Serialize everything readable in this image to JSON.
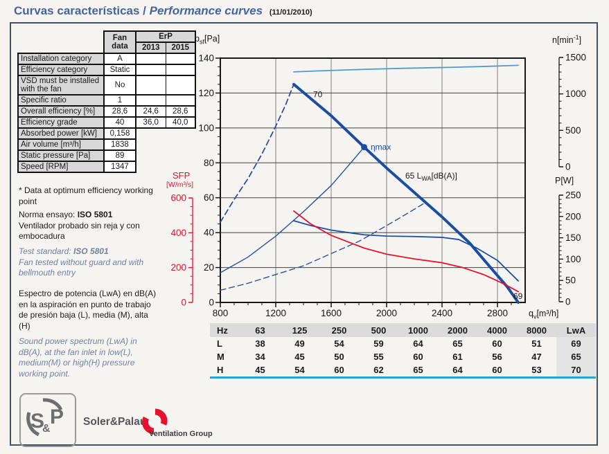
{
  "title": {
    "part1": "Curvas características /",
    "part2": "Performance curves",
    "date": "(11/01/2010)"
  },
  "fan_table": {
    "header": {
      "fan_line1": "Fan",
      "fan_line2": "data",
      "erp": "ErP",
      "y2013": "2013",
      "y2015": "2015"
    },
    "rows": [
      {
        "label": "Installation category",
        "fan": "A",
        "e2013": "",
        "e2015": ""
      },
      {
        "label": "Efficiency category",
        "fan": "Static",
        "e2013": "",
        "e2015": ""
      },
      {
        "label": "VSD must be installed with the fan",
        "fan": "No",
        "e2013": "",
        "e2015": ""
      },
      {
        "label": "Specific ratio",
        "fan": "1",
        "e2013": "",
        "e2015": ""
      },
      {
        "label": "Overall efficiency [%]",
        "fan": "28,6",
        "e2013": "24,6",
        "e2015": "28,6"
      },
      {
        "label": "Efficiency grade",
        "fan": "40",
        "e2013": "36,0",
        "e2015": "40,0"
      },
      {
        "label": "Absorbed power [kW]",
        "fan": "0,158"
      },
      {
        "label": "Air volume [m³/h]",
        "fan": "1838"
      },
      {
        "label": "Static pressure [Pa]",
        "fan": "89"
      },
      {
        "label": "Speed [RPM]",
        "fan": "1347"
      }
    ]
  },
  "notes": {
    "optimum": "* Data at optimum efficiency working point",
    "norma_label": "Norma ensayo: ",
    "norma_std": "ISO 5801",
    "norma_text": "Ventilador probado sin reja y con embocadura",
    "test_label": "Test standard: ",
    "test_std": "ISO 5801",
    "test_text": "Fan tested without guard and with bellmouth entry",
    "spectrum_es": "Espectro de potencia (LwA) en dB(A) en la aspiración en punto de trabajo de presión baja (L), media (M), alta (H)",
    "spectrum_en": "Sound power spectrum (LwA) in dB(A), at the fan inlet in low(L), medium(M) or high(H) pressure working point."
  },
  "chart": {
    "labels": {
      "pressure_base": "p",
      "pressure_sub": "sf",
      "pressure_unit": "[Pa]",
      "speed_base": "n[min",
      "speed_sup": "-1",
      "speed_close": "]",
      "power": "P[W]",
      "flow_base": "q",
      "flow_sub": "v",
      "flow_unit": "[m³/h]",
      "sfp_name": "SFP",
      "sfp_unit": "[W/m³/s]"
    }
  },
  "chart_data": {
    "type": "line",
    "title": "Performance curves",
    "xlabel": "qv [m³/h]",
    "x_axis": {
      "min": 800,
      "max": 3000,
      "major_ticks": [
        800,
        1200,
        1600,
        2000,
        2400,
        2800
      ],
      "minor_step": 100
    },
    "axes": {
      "pressure": {
        "label": "psf [Pa]",
        "min": 0,
        "max": 140,
        "major_ticks": [
          0,
          20,
          40,
          60,
          80,
          100,
          120,
          140
        ],
        "minor_step": 5,
        "side": "left"
      },
      "speed": {
        "label": "n [min-1]",
        "min": 0,
        "max": 1500,
        "major_ticks": [
          0,
          500,
          1000,
          1500
        ],
        "minor_step": 100,
        "side": "right"
      },
      "power": {
        "label": "P [W]",
        "min": 0,
        "max": 250,
        "major_ticks": [
          0,
          50,
          100,
          150,
          200,
          250
        ],
        "minor_step": 10,
        "side": "right"
      },
      "sfp": {
        "label": "SFP [W/m³/s]",
        "min": 0,
        "max": 600,
        "major_ticks": [
          0,
          200,
          400,
          600
        ],
        "minor_step": 50,
        "side": "left"
      }
    },
    "grid": {
      "vertical": [
        1200,
        1600,
        2000,
        2400,
        2800
      ],
      "horizontal": [
        20,
        40,
        60,
        80,
        100,
        120
      ]
    },
    "series": [
      {
        "name": "speed-curve",
        "axis": "speed",
        "color": "#4f9ccb",
        "width": 1.8,
        "dash": "",
        "points": [
          [
            1330,
            1302
          ],
          [
            1500,
            1315
          ],
          [
            1700,
            1328
          ],
          [
            1900,
            1340
          ],
          [
            2100,
            1350
          ],
          [
            2300,
            1358
          ],
          [
            2500,
            1366
          ],
          [
            2700,
            1376
          ],
          [
            2950,
            1392
          ]
        ]
      },
      {
        "name": "pressure-curve-stall-region",
        "axis": "pressure",
        "color": "#2c4f9e",
        "width": 1.8,
        "dash": "8 5",
        "points": [
          [
            800,
            46
          ],
          [
            900,
            59
          ],
          [
            1000,
            71
          ],
          [
            1100,
            85
          ],
          [
            1200,
            101
          ],
          [
            1270,
            113
          ],
          [
            1330,
            125
          ]
        ]
      },
      {
        "name": "static-pressure-curve",
        "axis": "pressure",
        "color": "#1b4da1",
        "width": 4,
        "dash": "",
        "points": [
          [
            1330,
            125
          ],
          [
            1450,
            117
          ],
          [
            1600,
            107
          ],
          [
            1838,
            89
          ],
          [
            2000,
            77
          ],
          [
            2200,
            63
          ],
          [
            2400,
            49
          ],
          [
            2600,
            34
          ],
          [
            2750,
            20
          ],
          [
            2870,
            9
          ],
          [
            2950,
            0
          ]
        ]
      },
      {
        "name": "system-resistance-curve",
        "axis": "pressure",
        "color": "#2c4f9e",
        "width": 1.4,
        "dash": "",
        "points": [
          [
            800,
            17
          ],
          [
            1000,
            26
          ],
          [
            1200,
            38
          ],
          [
            1400,
            52
          ],
          [
            1600,
            67
          ],
          [
            1720,
            78
          ],
          [
            1838,
            89
          ]
        ]
      },
      {
        "name": "dynamic-pressure-curve",
        "axis": "pressure",
        "color": "#2c4f9e",
        "width": 1.4,
        "dash": "8 5",
        "points": [
          [
            800,
            7
          ],
          [
            1000,
            11
          ],
          [
            1200,
            16
          ],
          [
            1400,
            21
          ],
          [
            1600,
            28
          ],
          [
            1800,
            35
          ],
          [
            2000,
            44
          ],
          [
            2150,
            51
          ],
          [
            2275,
            57
          ]
        ]
      },
      {
        "name": "power-curve",
        "axis": "power",
        "color": "#1b4da1",
        "width": 1.8,
        "dash": "",
        "points": [
          [
            1330,
            190
          ],
          [
            1450,
            179
          ],
          [
            1600,
            168
          ],
          [
            1838,
            157
          ],
          [
            2000,
            154
          ],
          [
            2200,
            153
          ],
          [
            2400,
            151
          ],
          [
            2520,
            146
          ],
          [
            2650,
            126
          ],
          [
            2800,
            97
          ],
          [
            2950,
            49
          ]
        ]
      },
      {
        "name": "sfp-curve",
        "axis": "sfp",
        "color": "#e8112d",
        "width": 1.8,
        "dash": "",
        "points": [
          [
            1330,
            525
          ],
          [
            1450,
            452
          ],
          [
            1600,
            385
          ],
          [
            1838,
            312
          ],
          [
            2000,
            277
          ],
          [
            2200,
            250
          ],
          [
            2400,
            228
          ],
          [
            2550,
            200
          ],
          [
            2700,
            160
          ],
          [
            2850,
            105
          ],
          [
            2950,
            62
          ]
        ]
      }
    ],
    "working_point": {
      "x": 1838,
      "pressure": 89,
      "label": "ηmax"
    },
    "annotations": [
      {
        "parts": [
          {
            "t": "70"
          }
        ],
        "x": 1470,
        "v": 117.5,
        "axis": "pressure",
        "color": "#1a1a1a"
      },
      {
        "parts": [
          {
            "t": "ηmax"
          }
        ],
        "x": 1885,
        "v": 87.5,
        "axis": "pressure",
        "color": "#1b4da1"
      },
      {
        "parts": [
          {
            "t": "65 L"
          },
          {
            "t": "WA",
            "sub": true
          },
          {
            "t": "[dB(A)]"
          }
        ],
        "x": 2135,
        "v": 71,
        "axis": "pressure",
        "color": "#1a1a1a"
      },
      {
        "parts": [
          {
            "t": "69"
          }
        ],
        "x": 2915,
        "v": 2,
        "axis": "pressure",
        "color": "#1a1a1a"
      }
    ]
  },
  "sound_table": {
    "col0": "Hz",
    "headers": [
      "63",
      "125",
      "250",
      "500",
      "1000",
      "2000",
      "4000",
      "8000"
    ],
    "lwa_header": "LwA",
    "rows": [
      {
        "label": "L",
        "values": [
          "38",
          "49",
          "54",
          "59",
          "64",
          "65",
          "60",
          "51"
        ],
        "lwa": "69"
      },
      {
        "label": "M",
        "values": [
          "34",
          "45",
          "50",
          "55",
          "60",
          "61",
          "56",
          "47"
        ],
        "lwa": "65"
      },
      {
        "label": "H",
        "values": [
          "45",
          "54",
          "60",
          "62",
          "65",
          "64",
          "60",
          "53"
        ],
        "lwa": "70"
      }
    ]
  },
  "logo": {
    "mark": "S&P",
    "company": "Soler&Palau",
    "group": "Ventilation Group"
  }
}
